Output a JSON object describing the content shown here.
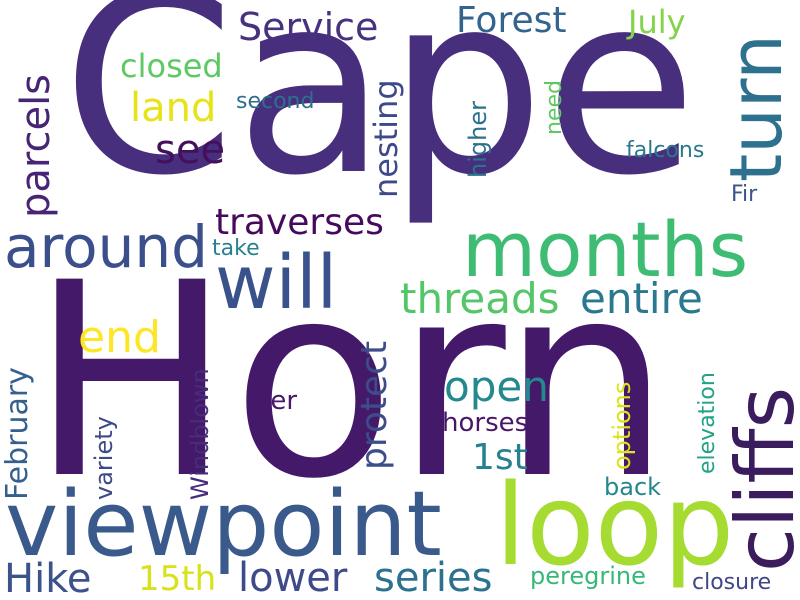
{
  "words": [
    {
      "id": "cape",
      "text": "Cape",
      "color": "#472f7d"
    },
    {
      "id": "horn",
      "text": "Horn",
      "color": "#45196a"
    },
    {
      "id": "viewpoint",
      "text": "viewpoint",
      "color": "#3b5a8c"
    },
    {
      "id": "loop",
      "text": "loop",
      "color": "#a6db32"
    },
    {
      "id": "months",
      "text": "months",
      "color": "#3fbc73"
    },
    {
      "id": "around",
      "text": "around",
      "color": "#3b4f8a"
    },
    {
      "id": "will",
      "text": "will",
      "color": "#3a528b"
    },
    {
      "id": "turn",
      "text": "turn",
      "color": "#2d718e"
    },
    {
      "id": "cliffs",
      "text": "cliffs",
      "color": "#3b1c5c"
    },
    {
      "id": "service",
      "text": "Service",
      "color": "#46327e"
    },
    {
      "id": "forest",
      "text": "Forest",
      "color": "#33648d"
    },
    {
      "id": "july",
      "text": "July",
      "color": "#84d44b"
    },
    {
      "id": "closed",
      "text": "closed",
      "color": "#5ec962"
    },
    {
      "id": "land",
      "text": "land",
      "color": "#e6e418"
    },
    {
      "id": "see",
      "text": "see",
      "color": "#44105c"
    },
    {
      "id": "second",
      "text": "second",
      "color": "#2e6e8e"
    },
    {
      "id": "parcels",
      "text": "parcels",
      "color": "#482475"
    },
    {
      "id": "nesting",
      "text": "nesting",
      "color": "#3e4989"
    },
    {
      "id": "higher",
      "text": "higher",
      "color": "#2c728e"
    },
    {
      "id": "need",
      "text": "need",
      "color": "#5ec962"
    },
    {
      "id": "falcons",
      "text": "falcons",
      "color": "#2a788e"
    },
    {
      "id": "fir",
      "text": "Fir",
      "color": "#3a548c"
    },
    {
      "id": "traverses",
      "text": "traverses",
      "color": "#460a5d"
    },
    {
      "id": "take",
      "text": "take",
      "color": "#26828e"
    },
    {
      "id": "threads",
      "text": "threads",
      "color": "#54c568"
    },
    {
      "id": "entire",
      "text": "entire",
      "color": "#2a788e"
    },
    {
      "id": "end",
      "text": "end",
      "color": "#fde725"
    },
    {
      "id": "protect",
      "text": "protect",
      "color": "#3d4d8a"
    },
    {
      "id": "open",
      "text": "open",
      "color": "#23898e"
    },
    {
      "id": "first",
      "text": "1st",
      "color": "#26828e"
    },
    {
      "id": "february",
      "text": "February",
      "color": "#35608d"
    },
    {
      "id": "variety",
      "text": "variety",
      "color": "#3e4989"
    },
    {
      "id": "windblown",
      "text": "Windblown",
      "color": "#472c7a"
    },
    {
      "id": "tier",
      "text": "tier",
      "color": "#48196b"
    },
    {
      "id": "horses",
      "text": "horses",
      "color": "#481769"
    },
    {
      "id": "options",
      "text": "options",
      "color": "#dde318"
    },
    {
      "id": "elevation",
      "text": "elevation",
      "color": "#20a386"
    },
    {
      "id": "back",
      "text": "back",
      "color": "#24868e"
    },
    {
      "id": "hike",
      "text": "Hike",
      "color": "#3b528b"
    },
    {
      "id": "fifteenth",
      "text": "15th",
      "color": "#d8e219"
    },
    {
      "id": "lower",
      "text": "lower",
      "color": "#3e4a89"
    },
    {
      "id": "series",
      "text": "series",
      "color": "#2c718e"
    },
    {
      "id": "peregrine",
      "text": "peregrine",
      "color": "#37b878"
    },
    {
      "id": "closure",
      "text": "closure",
      "color": "#3f4788"
    }
  ]
}
